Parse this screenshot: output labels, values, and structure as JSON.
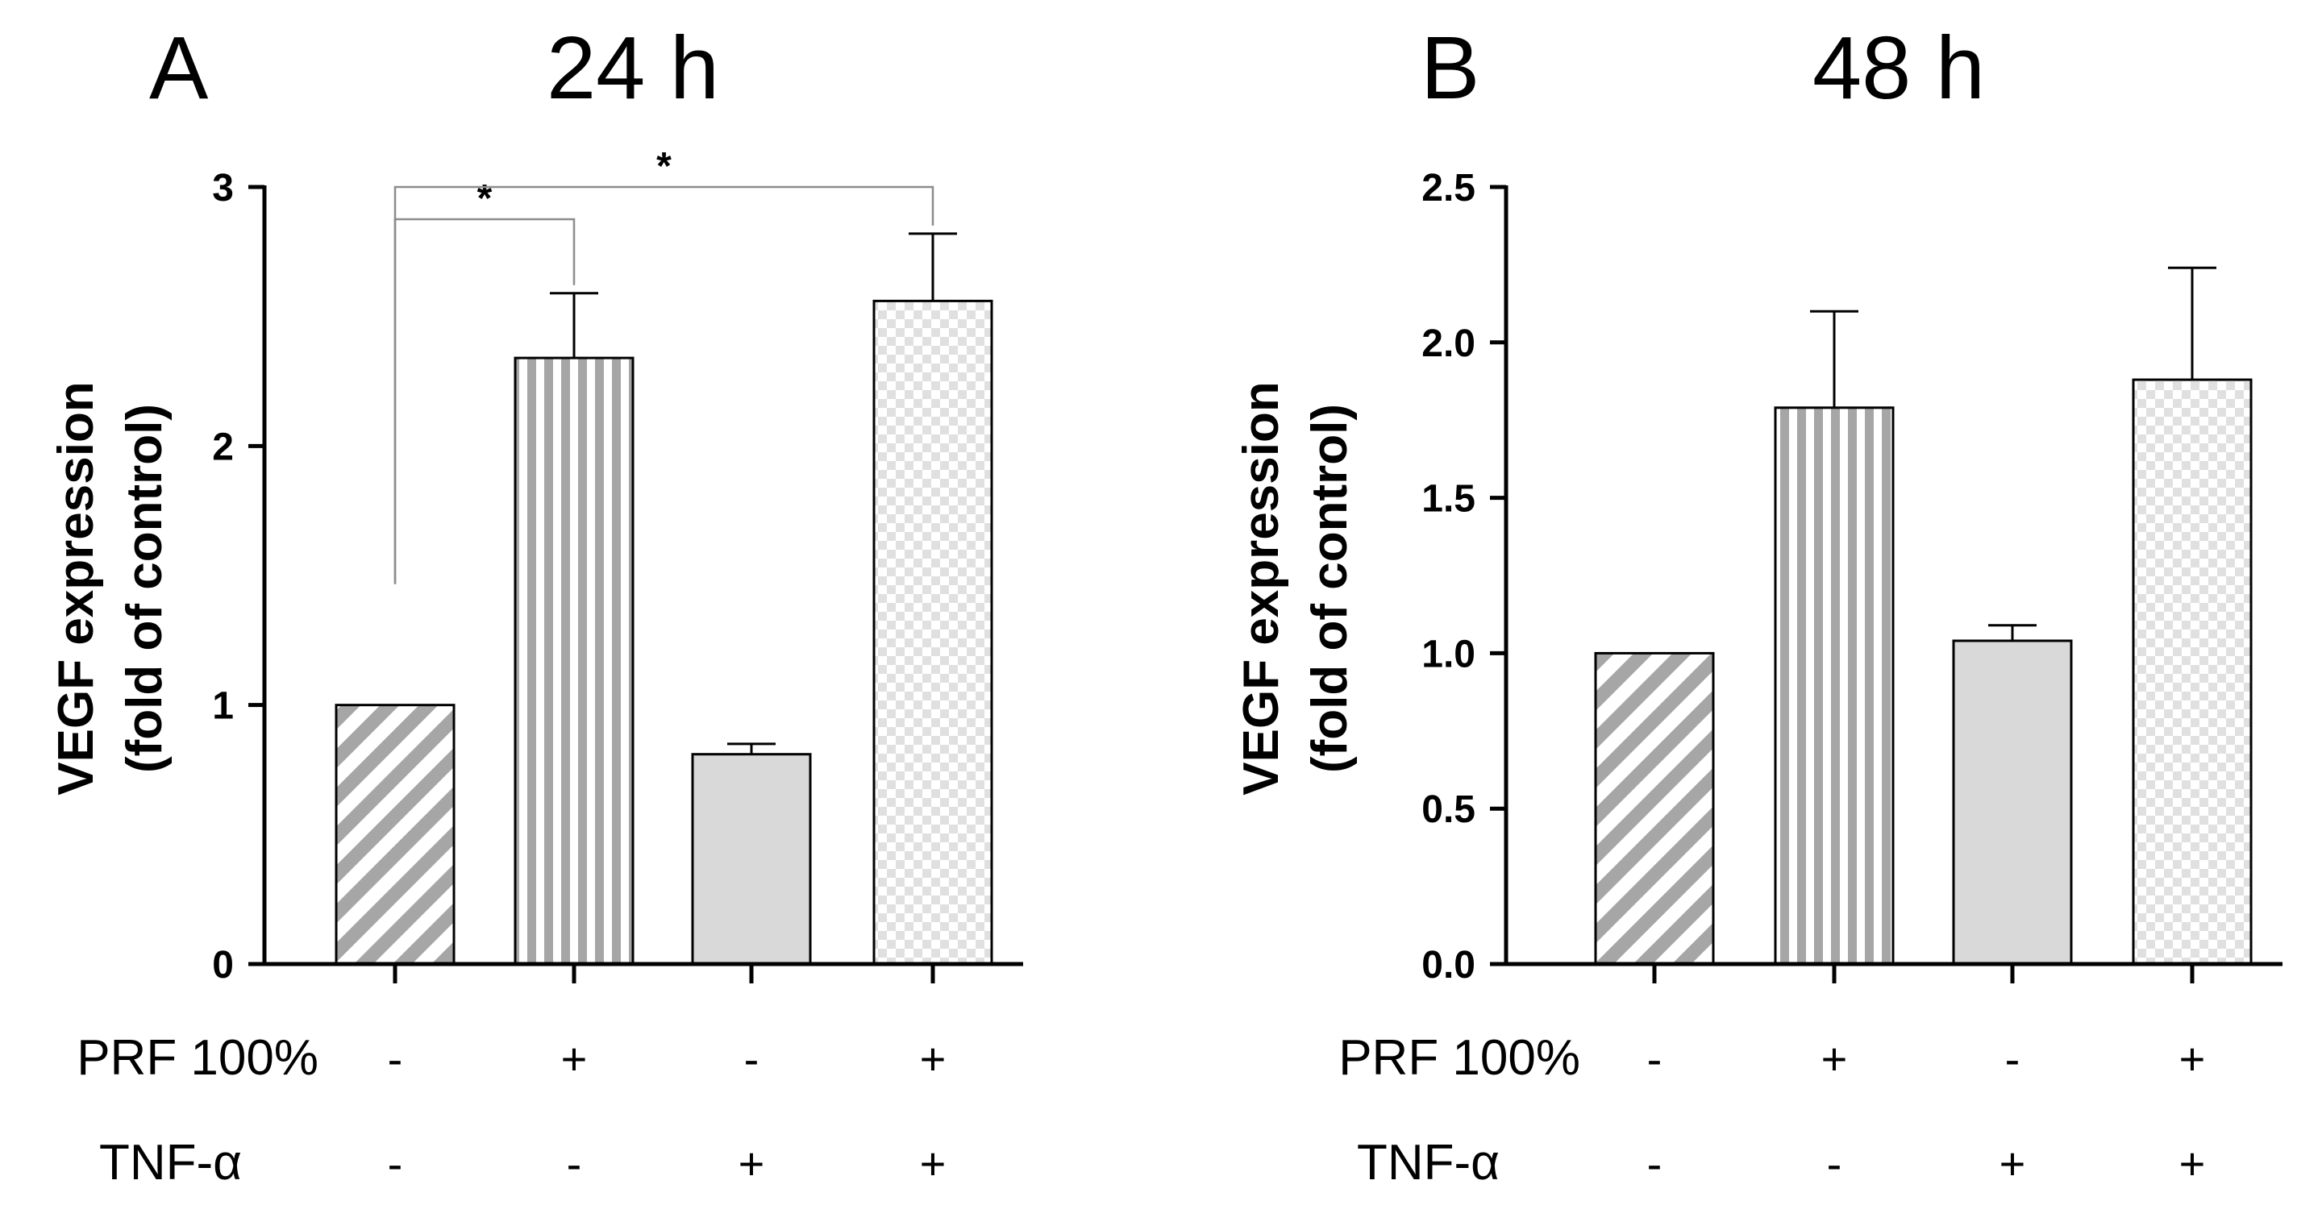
{
  "chart_data": [
    {
      "type": "bar",
      "panel": "A",
      "title": "24 h",
      "ylabel": [
        "VEGF expression",
        "(fold of control)"
      ],
      "ylim": [
        0,
        3
      ],
      "yticks": [
        0,
        1,
        2,
        3
      ],
      "ytick_labels": [
        "0",
        "1",
        "2",
        "3"
      ],
      "categories": [
        "Control",
        "PRF 100%",
        "TNF-α",
        "PRF 100% + TNF-α"
      ],
      "values": [
        1.0,
        2.34,
        0.81,
        2.56
      ],
      "errors": [
        0.0,
        0.25,
        0.04,
        0.26
      ],
      "patterns": [
        "diagonal",
        "vertical",
        "solid",
        "checker"
      ],
      "factor_rows": [
        {
          "label": "PRF 100%",
          "signs": [
            "-",
            "+",
            "-",
            "+"
          ]
        },
        {
          "label": "TNF-α",
          "signs": [
            "-",
            "-",
            "+",
            "+"
          ]
        }
      ],
      "significance": [
        {
          "from": 0,
          "to": 1,
          "label": "*"
        },
        {
          "from": 0,
          "to": 3,
          "label": "*"
        }
      ]
    },
    {
      "type": "bar",
      "panel": "B",
      "title": "48 h",
      "ylabel": [
        "VEGF expression",
        "(fold of control)"
      ],
      "ylim": [
        0,
        2.5
      ],
      "yticks": [
        0,
        0.5,
        1.0,
        1.5,
        2.0,
        2.5
      ],
      "ytick_labels": [
        "0.0",
        "0.5",
        "1.0",
        "1.5",
        "2.0",
        "2.5"
      ],
      "categories": [
        "Control",
        "PRF 100%",
        "TNF-α",
        "PRF 100% + TNF-α"
      ],
      "values": [
        1.0,
        1.79,
        1.04,
        1.88
      ],
      "errors": [
        0.0,
        0.31,
        0.05,
        0.36
      ],
      "patterns": [
        "diagonal",
        "vertical",
        "solid",
        "checker"
      ],
      "factor_rows": [
        {
          "label": "PRF 100%",
          "signs": [
            "-",
            "+",
            "-",
            "+"
          ]
        },
        {
          "label": "TNF-α",
          "signs": [
            "-",
            "-",
            "+",
            "+"
          ]
        }
      ],
      "significance": []
    }
  ],
  "colors": {
    "bar_fill": "#d9d9d9",
    "pattern_stroke": "#a6a6a6",
    "checker": "#e0e0e0",
    "bracket": "#8c8c8c",
    "axis": "#000000"
  }
}
